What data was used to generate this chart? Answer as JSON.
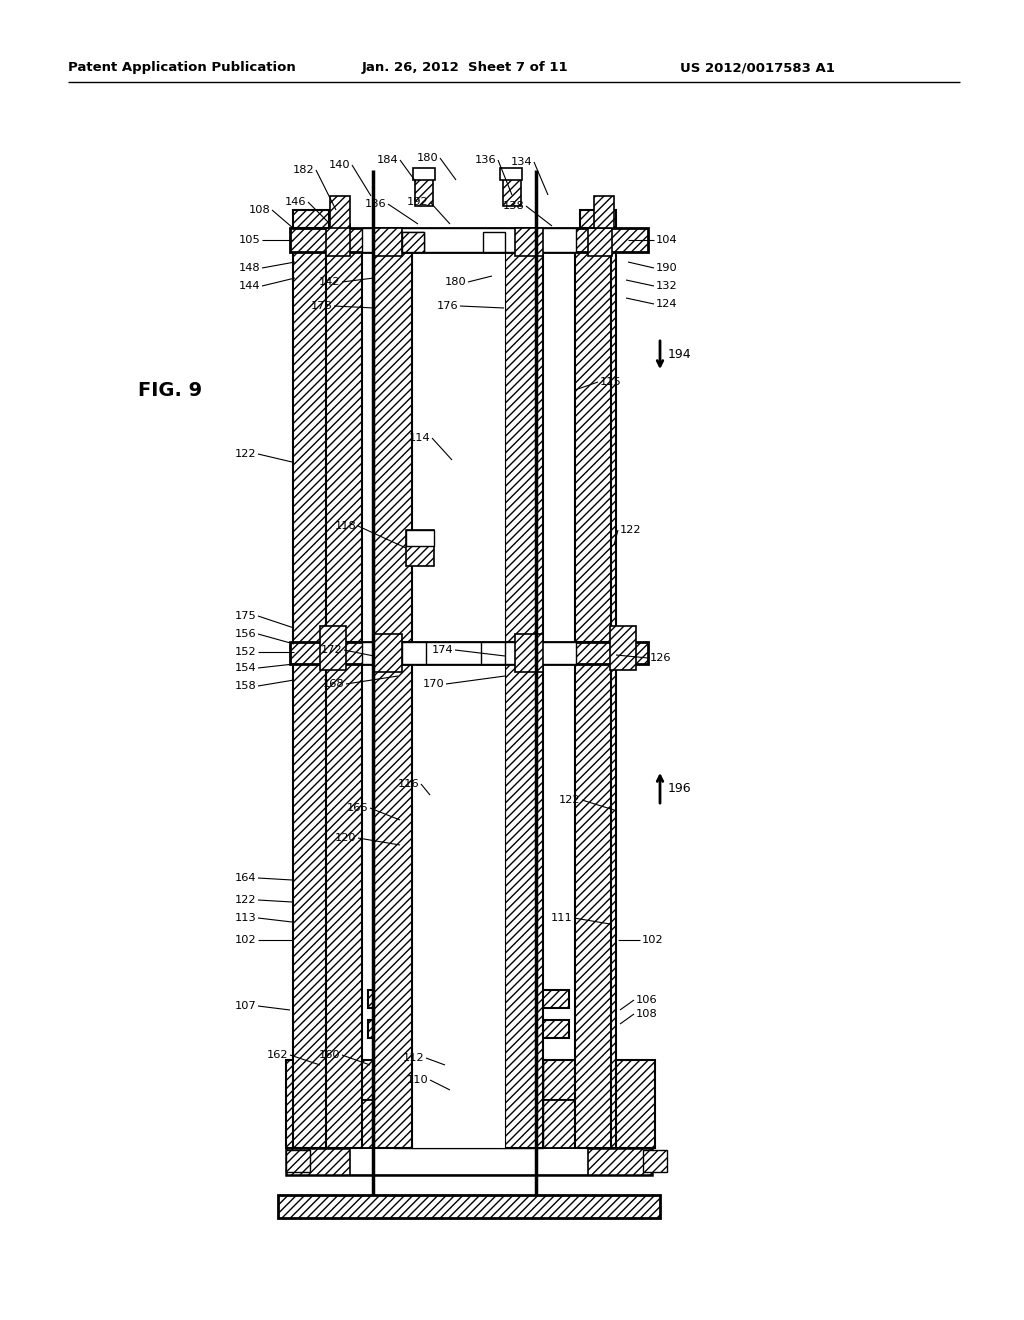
{
  "header_left": "Patent Application Publication",
  "header_center": "Jan. 26, 2012  Sheet 7 of 11",
  "header_right": "US 2012/0017583 A1",
  "fig_label": "FIG. 9",
  "bg_color": "#ffffff"
}
